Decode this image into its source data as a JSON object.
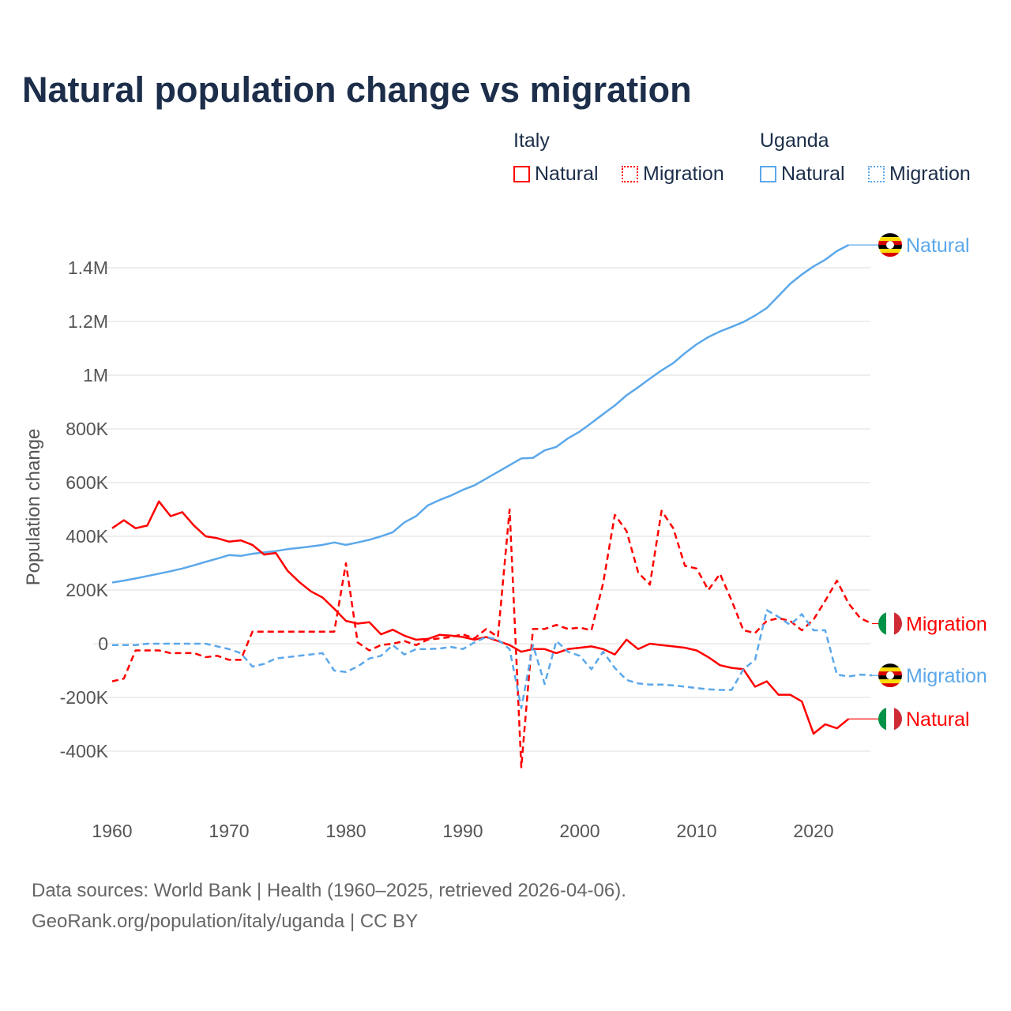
{
  "title": "Natural population change vs migration",
  "legend": {
    "groups": [
      {
        "name": "Italy",
        "items": [
          "Natural",
          "Migration"
        ],
        "color": "#ff0000"
      },
      {
        "name": "Uganda",
        "items": [
          "Natural",
          "Migration"
        ],
        "color": "#5ba8ea"
      }
    ]
  },
  "footer": {
    "line1": "Data sources: World Bank | Health (1960–2025, retrieved 2026-04-06).",
    "line2": "GeoRank.org/population/italy/uganda | CC BY"
  },
  "chart_data": {
    "type": "line",
    "title": "Natural population change vs migration",
    "xlabel": "",
    "ylabel": "Population change",
    "xlim": [
      1960,
      2025
    ],
    "ylim": [
      -600000,
      1550000
    ],
    "x_ticks": [
      1960,
      1970,
      1980,
      1990,
      2000,
      2010,
      2020
    ],
    "y_ticks": [
      {
        "v": -400000,
        "label": "-400K"
      },
      {
        "v": -200000,
        "label": "-200K"
      },
      {
        "v": 0,
        "label": "0"
      },
      {
        "v": 200000,
        "label": "200K"
      },
      {
        "v": 400000,
        "label": "400K"
      },
      {
        "v": 600000,
        "label": "600K"
      },
      {
        "v": 800000,
        "label": "800K"
      },
      {
        "v": 1000000,
        "label": "1M"
      },
      {
        "v": 1200000,
        "label": "1.2M"
      },
      {
        "v": 1400000,
        "label": "1.4M"
      }
    ],
    "grid": true,
    "start_year": 1960,
    "series": [
      {
        "name": "Uganda Natural",
        "country": "Uganda",
        "kind": "Natural",
        "color": "#5ba8ea",
        "dashed": false,
        "end_label": "Natural",
        "values_k": [
          228,
          235,
          243,
          252,
          261,
          270,
          280,
          292,
          305,
          317,
          330,
          327,
          335,
          340,
          345,
          352,
          357,
          362,
          368,
          377,
          368,
          377,
          387,
          400,
          415,
          452,
          475,
          515,
          535,
          552,
          573,
          590,
          615,
          640,
          665,
          690,
          692,
          720,
          733,
          765,
          790,
          822,
          855,
          887,
          925,
          955,
          987,
          1018,
          1045,
          1082,
          1115,
          1142,
          1163,
          1180,
          1198,
          1222,
          1250,
          1295,
          1340,
          1375,
          1405,
          1430,
          1462,
          1485
        ]
      },
      {
        "name": "Italy Natural",
        "country": "Italy",
        "kind": "Natural",
        "color": "#ff0000",
        "dashed": false,
        "end_label": "Natural",
        "values_k": [
          430,
          460,
          430,
          440,
          530,
          475,
          490,
          440,
          400,
          393,
          380,
          385,
          368,
          332,
          338,
          272,
          230,
          195,
          172,
          130,
          85,
          75,
          80,
          35,
          52,
          30,
          15,
          18,
          33,
          30,
          25,
          15,
          25,
          10,
          -5,
          -30,
          -20,
          -20,
          -35,
          -20,
          -15,
          -10,
          -20,
          -40,
          15,
          -20,
          0,
          -5,
          -10,
          -15,
          -25,
          -50,
          -80,
          -90,
          -95,
          -160,
          -140,
          -190,
          -190,
          -215,
          -335,
          -300,
          -315,
          -280
        ]
      },
      {
        "name": "Italy Migration",
        "country": "Italy",
        "kind": "Migration",
        "color": "#ff0000",
        "dashed": true,
        "end_label": "Migration",
        "values_k": [
          -140,
          -130,
          -25,
          -25,
          -25,
          -35,
          -35,
          -35,
          -50,
          -45,
          -60,
          -60,
          45,
          45,
          45,
          45,
          45,
          45,
          45,
          45,
          300,
          5,
          -25,
          -5,
          0,
          10,
          -5,
          15,
          20,
          25,
          35,
          20,
          55,
          25,
          500,
          -460,
          55,
          55,
          70,
          55,
          60,
          50,
          225,
          480,
          420,
          265,
          220,
          495,
          430,
          290,
          280,
          200,
          260,
          160,
          50,
          40,
          85,
          95,
          85,
          50,
          90,
          160,
          235,
          150,
          95,
          75
        ]
      },
      {
        "name": "Uganda Migration",
        "country": "Uganda",
        "kind": "Migration",
        "color": "#5ba8ea",
        "dashed": true,
        "end_label": "Migration",
        "values_k": [
          -5,
          -5,
          -5,
          0,
          0,
          0,
          0,
          0,
          0,
          -10,
          -20,
          -35,
          -85,
          -75,
          -55,
          -50,
          -45,
          -40,
          -35,
          -100,
          -105,
          -85,
          -55,
          -45,
          -5,
          -40,
          -20,
          -20,
          -18,
          -12,
          -20,
          5,
          25,
          15,
          -20,
          -240,
          -5,
          -150,
          10,
          -30,
          -45,
          -95,
          -30,
          -90,
          -135,
          -148,
          -152,
          -152,
          -155,
          -160,
          -165,
          -170,
          -172,
          -172,
          -95,
          -60,
          125,
          100,
          70,
          110,
          50,
          50,
          -115,
          -122,
          -115,
          -118
        ]
      }
    ]
  }
}
